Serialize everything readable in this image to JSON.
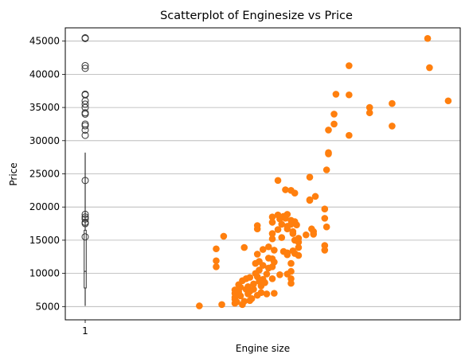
{
  "chart_data": {
    "type": "scatter",
    "title": "Scatterplot of Enginesize vs Price",
    "xlabel": "Engine size",
    "ylabel": "Price",
    "ylim": [
      3000,
      47000
    ],
    "y_ticks": [
      5000,
      10000,
      15000,
      20000,
      25000,
      30000,
      35000,
      40000,
      45000
    ],
    "x_tick_label": "1",
    "grid": "y-only",
    "colors": {
      "scatter": "#ff7f0e",
      "boxplot": "#333333"
    },
    "boxplot": {
      "position": 1,
      "whisker_low": 5100,
      "q1": 7800,
      "median": 10300,
      "q3": 16500,
      "whisker_high": 28200,
      "outliers": [
        30800,
        31600,
        32250,
        32500,
        34000,
        34200,
        35000,
        35500,
        36000,
        36900,
        37000,
        40900,
        41300,
        45400,
        45500,
        18900,
        18500,
        17700,
        17500,
        18200,
        15500,
        24000
      ]
    },
    "scatter_points": [
      [
        61,
        5100
      ],
      [
        70,
        13700
      ],
      [
        70,
        11900
      ],
      [
        70,
        11000
      ],
      [
        73,
        5300
      ],
      [
        74,
        15600
      ],
      [
        80,
        5500
      ],
      [
        80,
        6100
      ],
      [
        80,
        6400
      ],
      [
        80,
        7000
      ],
      [
        80,
        7500
      ],
      [
        81,
        5700
      ],
      [
        82,
        8300
      ],
      [
        82,
        7200
      ],
      [
        83,
        6600
      ],
      [
        83,
        7900
      ],
      [
        84,
        8900
      ],
      [
        84,
        5300
      ],
      [
        85,
        5800
      ],
      [
        85,
        13900
      ],
      [
        86,
        9200
      ],
      [
        86,
        7600
      ],
      [
        87,
        6900
      ],
      [
        87,
        8000
      ],
      [
        88,
        9400
      ],
      [
        88,
        7300
      ],
      [
        88,
        5900
      ],
      [
        89,
        6200
      ],
      [
        90,
        8400
      ],
      [
        90,
        7600
      ],
      [
        91,
        10000
      ],
      [
        91,
        11500
      ],
      [
        92,
        16700
      ],
      [
        92,
        17200
      ],
      [
        92,
        12900
      ],
      [
        92,
        9500
      ],
      [
        92,
        6700
      ],
      [
        93,
        8800
      ],
      [
        93,
        11800
      ],
      [
        93,
        10500
      ],
      [
        94,
        8100
      ],
      [
        94,
        7100
      ],
      [
        95,
        13600
      ],
      [
        95,
        11200
      ],
      [
        95,
        9100
      ],
      [
        96,
        8600
      ],
      [
        97,
        9900
      ],
      [
        97,
        6900
      ],
      [
        98,
        14000
      ],
      [
        98,
        12300
      ],
      [
        98,
        10800
      ],
      [
        100,
        18500
      ],
      [
        100,
        17700
      ],
      [
        100,
        16000
      ],
      [
        100,
        15200
      ],
      [
        100,
        12200
      ],
      [
        100,
        11000
      ],
      [
        100,
        9200
      ],
      [
        101,
        7000
      ],
      [
        101,
        13500
      ],
      [
        101,
        11700
      ],
      [
        103,
        24000
      ],
      [
        103,
        18800
      ],
      [
        103,
        16600
      ],
      [
        104,
        18200
      ],
      [
        104,
        9800
      ],
      [
        105,
        17400
      ],
      [
        105,
        15400
      ],
      [
        106,
        18600
      ],
      [
        106,
        13300
      ],
      [
        107,
        18300
      ],
      [
        107,
        22600
      ],
      [
        108,
        18900
      ],
      [
        108,
        17100
      ],
      [
        108,
        16700
      ],
      [
        108,
        13100
      ],
      [
        108,
        12800
      ],
      [
        108,
        9900
      ],
      [
        110,
        22500
      ],
      [
        110,
        18000
      ],
      [
        110,
        17400
      ],
      [
        110,
        11500
      ],
      [
        110,
        9200
      ],
      [
        110,
        8500
      ],
      [
        110,
        10300
      ],
      [
        111,
        16300
      ],
      [
        111,
        16000
      ],
      [
        111,
        13400
      ],
      [
        112,
        22100
      ],
      [
        112,
        17800
      ],
      [
        112,
        15000
      ],
      [
        112,
        13000
      ],
      [
        113,
        17300
      ],
      [
        114,
        15300
      ],
      [
        114,
        12700
      ],
      [
        114,
        13900
      ],
      [
        114,
        14700
      ],
      [
        118,
        15800
      ],
      [
        120,
        21000
      ],
      [
        120,
        24500
      ],
      [
        120,
        21100
      ],
      [
        121,
        16700
      ],
      [
        122,
        16300
      ],
      [
        122,
        15900
      ],
      [
        123,
        21600
      ],
      [
        128,
        18300
      ],
      [
        128,
        19700
      ],
      [
        128,
        14200
      ],
      [
        128,
        13500
      ],
      [
        129,
        17000
      ],
      [
        129,
        25600
      ],
      [
        130,
        28200
      ],
      [
        130,
        28000
      ],
      [
        130,
        31600
      ],
      [
        133,
        32500
      ],
      [
        133,
        34000
      ],
      [
        134,
        37000
      ],
      [
        141,
        30800
      ],
      [
        141,
        36900
      ],
      [
        141,
        41300
      ],
      [
        152,
        35000
      ],
      [
        152,
        34200
      ],
      [
        164,
        35600
      ],
      [
        164,
        32200
      ],
      [
        183,
        45400
      ],
      [
        184,
        41000
      ],
      [
        194,
        36000
      ]
    ]
  }
}
